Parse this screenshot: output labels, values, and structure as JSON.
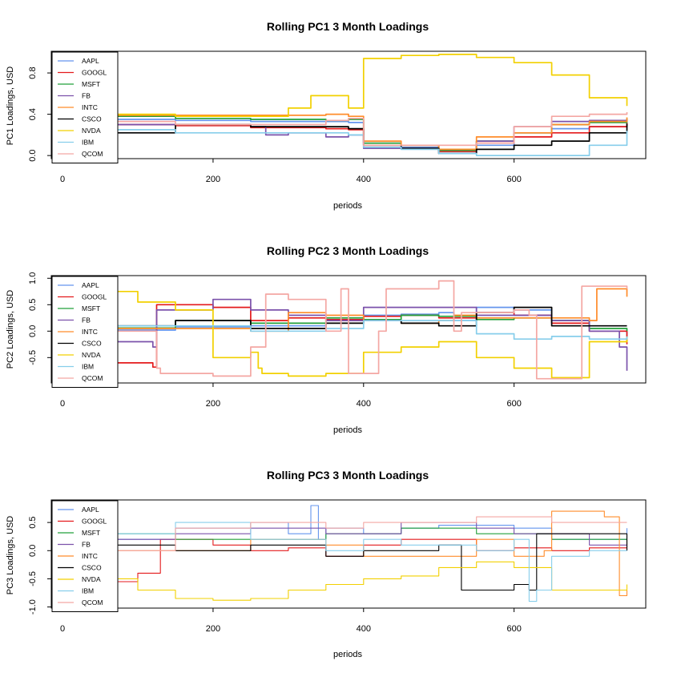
{
  "series_names": [
    "AAPL",
    "GOOGL",
    "MSFT",
    "FB",
    "INTC",
    "CSCO",
    "NVDA",
    "IBM",
    "QCOM"
  ],
  "series_colors": [
    "#6495ED",
    "#E41A1C",
    "#22A03A",
    "#7B52AB",
    "#FF8C2A",
    "#000000",
    "#F2D000",
    "#87CEEB",
    "#F4A7A3"
  ],
  "chart_data": [
    {
      "type": "line",
      "title": "Rolling PC1 3 Month Loadings",
      "xlabel": "periods",
      "ylabel": "PC1 Loadings, USD",
      "xlim": [
        -15,
        775
      ],
      "ylim": [
        -0.03,
        1.01
      ],
      "xticks": [
        0,
        200,
        400,
        600
      ],
      "yticks": [
        0.0,
        0.4,
        0.8
      ],
      "ytick_labels": [
        "0.0",
        "0.4",
        "0.8"
      ],
      "legend": "top-left",
      "series": [
        {
          "name": "AAPL",
          "x": [
            60,
            150,
            250,
            350,
            380,
            400,
            450,
            500,
            550,
            600,
            650,
            700,
            750
          ],
          "y": [
            0.35,
            0.34,
            0.33,
            0.33,
            0.32,
            0.1,
            0.08,
            0.06,
            0.1,
            0.22,
            0.26,
            0.28,
            0.3
          ]
        },
        {
          "name": "GOOGL",
          "x": [
            60,
            70,
            150,
            250,
            350,
            380,
            400,
            450,
            500,
            550,
            600,
            650,
            700,
            750
          ],
          "y": [
            0.5,
            0.3,
            0.29,
            0.27,
            0.26,
            0.25,
            0.12,
            0.1,
            0.04,
            0.12,
            0.18,
            0.22,
            0.28,
            0.32
          ]
        },
        {
          "name": "MSFT",
          "x": [
            60,
            150,
            250,
            350,
            380,
            400,
            450,
            500,
            550,
            600,
            650,
            700,
            750
          ],
          "y": [
            0.38,
            0.36,
            0.35,
            0.34,
            0.35,
            0.12,
            0.1,
            0.05,
            0.14,
            0.22,
            0.3,
            0.32,
            0.36
          ]
        },
        {
          "name": "FB",
          "x": [
            60,
            150,
            250,
            270,
            300,
            350,
            380,
            400,
            450,
            500,
            550,
            600,
            650,
            700,
            750
          ],
          "y": [
            0.3,
            0.3,
            0.28,
            0.2,
            0.22,
            0.18,
            0.2,
            0.07,
            0.07,
            0.02,
            0.14,
            0.28,
            0.33,
            0.34,
            0.33
          ]
        },
        {
          "name": "INTC",
          "x": [
            60,
            150,
            250,
            350,
            380,
            400,
            450,
            500,
            550,
            600,
            650,
            700,
            750
          ],
          "y": [
            0.39,
            0.39,
            0.39,
            0.4,
            0.38,
            0.14,
            0.1,
            0.06,
            0.18,
            0.22,
            0.3,
            0.33,
            0.37
          ]
        },
        {
          "name": "CSCO",
          "x": [
            60,
            150,
            250,
            350,
            380,
            400,
            450,
            500,
            550,
            600,
            650,
            700,
            750
          ],
          "y": [
            0.22,
            0.3,
            0.28,
            0.28,
            0.26,
            0.1,
            0.07,
            0.02,
            0.06,
            0.1,
            0.14,
            0.22,
            0.31
          ]
        },
        {
          "name": "NVDA",
          "x": [
            60,
            150,
            250,
            300,
            330,
            380,
            400,
            450,
            500,
            550,
            600,
            650,
            700,
            750
          ],
          "y": [
            0.4,
            0.38,
            0.38,
            0.46,
            0.58,
            0.46,
            0.94,
            0.97,
            0.98,
            0.95,
            0.9,
            0.78,
            0.56,
            0.48
          ]
        },
        {
          "name": "IBM",
          "x": [
            60,
            150,
            250,
            350,
            380,
            400,
            450,
            500,
            550,
            600,
            650,
            700,
            750
          ],
          "y": [
            0.25,
            0.22,
            0.22,
            0.22,
            0.2,
            0.08,
            0.06,
            0.02,
            0.0,
            0.0,
            0.0,
            0.1,
            0.24
          ]
        },
        {
          "name": "QCOM",
          "x": [
            60,
            150,
            250,
            350,
            380,
            400,
            450,
            500,
            550,
            600,
            650,
            700,
            750
          ],
          "y": [
            0.33,
            0.3,
            0.3,
            0.34,
            0.36,
            0.1,
            0.1,
            0.1,
            0.12,
            0.28,
            0.38,
            0.4,
            0.42
          ]
        }
      ]
    },
    {
      "type": "line",
      "title": "Rolling PC2 3 Month Loadings",
      "xlabel": "periods",
      "ylabel": "PC2 Loadings, USD",
      "xlim": [
        -15,
        775
      ],
      "ylim": [
        -0.98,
        1.05
      ],
      "xticks": [
        0,
        200,
        400,
        600
      ],
      "yticks": [
        -0.5,
        0.0,
        0.5,
        1.0
      ],
      "ytick_labels": [
        "-0.5",
        "0.0",
        "0.5",
        "1.0"
      ],
      "legend": "top-left",
      "series": [
        {
          "name": "AAPL",
          "x": [
            60,
            150,
            250,
            350,
            400,
            450,
            500,
            520,
            550,
            600,
            650,
            700,
            750
          ],
          "y": [
            0.02,
            0.08,
            0.1,
            0.2,
            0.3,
            0.32,
            0.35,
            0.2,
            0.45,
            0.4,
            0.2,
            0.0,
            -0.1
          ]
        },
        {
          "name": "GOOGL",
          "x": [
            60,
            70,
            120,
            125,
            200,
            250,
            300,
            350,
            400,
            450,
            500,
            550,
            600,
            650,
            700,
            750
          ],
          "y": [
            -0.4,
            -0.6,
            -0.68,
            0.5,
            0.45,
            0.2,
            0.25,
            0.22,
            0.28,
            0.3,
            0.25,
            0.35,
            0.3,
            0.15,
            0.0,
            -0.25
          ]
        },
        {
          "name": "MSFT",
          "x": [
            60,
            150,
            250,
            350,
            400,
            450,
            500,
            550,
            600,
            650,
            700,
            750
          ],
          "y": [
            0.06,
            0.2,
            0.15,
            0.25,
            0.22,
            0.3,
            0.28,
            0.22,
            0.25,
            0.2,
            0.05,
            0.0
          ]
        },
        {
          "name": "FB",
          "x": [
            60,
            120,
            125,
            200,
            220,
            250,
            300,
            350,
            400,
            450,
            500,
            550,
            600,
            650,
            700,
            740,
            750
          ],
          "y": [
            -0.2,
            -0.3,
            0.4,
            0.6,
            0.6,
            0.4,
            0.3,
            0.2,
            0.45,
            0.45,
            0.45,
            0.3,
            0.3,
            0.2,
            0.0,
            -0.3,
            -0.75
          ]
        },
        {
          "name": "INTC",
          "x": [
            60,
            150,
            250,
            300,
            350,
            400,
            450,
            500,
            520,
            550,
            600,
            650,
            700,
            710,
            750
          ],
          "y": [
            0.05,
            0.05,
            0.0,
            0.35,
            0.3,
            0.2,
            0.15,
            0.2,
            0.3,
            0.25,
            0.25,
            0.25,
            0.2,
            0.8,
            0.65
          ]
        },
        {
          "name": "CSCO",
          "x": [
            60,
            150,
            250,
            350,
            400,
            450,
            500,
            550,
            600,
            650,
            700,
            750
          ],
          "y": [
            0.1,
            0.2,
            0.05,
            0.15,
            0.2,
            0.15,
            0.1,
            0.35,
            0.45,
            0.1,
            0.1,
            0.1
          ]
        },
        {
          "name": "NVDA",
          "x": [
            60,
            100,
            150,
            200,
            250,
            260,
            265,
            300,
            350,
            400,
            450,
            500,
            550,
            600,
            650,
            700,
            750
          ],
          "y": [
            0.75,
            0.55,
            0.4,
            -0.5,
            -0.4,
            -0.7,
            -0.8,
            -0.85,
            -0.8,
            -0.4,
            -0.3,
            -0.2,
            -0.5,
            -0.7,
            -0.88,
            -0.2,
            -0.1
          ]
        },
        {
          "name": "IBM",
          "x": [
            60,
            150,
            250,
            350,
            400,
            450,
            500,
            550,
            600,
            650,
            700,
            750
          ],
          "y": [
            0.1,
            0.1,
            0.0,
            0.05,
            0.2,
            0.2,
            0.2,
            -0.05,
            -0.15,
            -0.1,
            -0.15,
            -0.1
          ]
        },
        {
          "name": "QCOM",
          "x": [
            60,
            125,
            130,
            200,
            250,
            270,
            300,
            350,
            370,
            380,
            420,
            430,
            500,
            520,
            530,
            600,
            620,
            630,
            680,
            690,
            750
          ],
          "y": [
            0.0,
            -0.7,
            -0.8,
            -0.85,
            -0.3,
            0.7,
            0.6,
            0.0,
            0.8,
            -0.8,
            0.0,
            0.8,
            0.95,
            0.0,
            0.35,
            0.4,
            0.3,
            -0.9,
            -0.9,
            0.85,
            0.8
          ]
        }
      ]
    },
    {
      "type": "line",
      "title": "Rolling PC3 3 Month Loadings",
      "xlabel": "periods",
      "ylabel": "PC3 Loadings, USD",
      "xlim": [
        -15,
        775
      ],
      "ylim": [
        -1.02,
        0.9
      ],
      "xticks": [
        0,
        200,
        400,
        600
      ],
      "yticks": [
        -1.0,
        -0.5,
        0.0,
        0.5
      ],
      "ytick_labels": [
        "-1.0",
        "-0.5",
        "0.0",
        "0.5"
      ],
      "legend": "top-left",
      "series": [
        {
          "name": "AAPL",
          "x": [
            60,
            150,
            250,
            300,
            330,
            340,
            350,
            400,
            450,
            500,
            550,
            600,
            650,
            700,
            750
          ],
          "y": [
            0.2,
            0.4,
            0.5,
            0.3,
            0.8,
            0.2,
            0.4,
            0.3,
            0.4,
            0.45,
            0.45,
            0.4,
            0.2,
            0.2,
            0.4
          ]
        },
        {
          "name": "GOOGL",
          "x": [
            60,
            100,
            130,
            200,
            250,
            300,
            350,
            400,
            450,
            500,
            550,
            600,
            650,
            700,
            750
          ],
          "y": [
            -0.55,
            -0.4,
            0.2,
            0.1,
            0.0,
            0.05,
            -0.1,
            0.1,
            0.2,
            0.2,
            0.0,
            0.05,
            0.0,
            0.05,
            0.2
          ]
        },
        {
          "name": "MSFT",
          "x": [
            60,
            150,
            250,
            350,
            400,
            450,
            500,
            550,
            600,
            650,
            700,
            750
          ],
          "y": [
            0.3,
            0.2,
            0.2,
            0.3,
            0.3,
            0.4,
            0.4,
            0.3,
            0.3,
            0.2,
            0.2,
            0.1
          ]
        },
        {
          "name": "FB",
          "x": [
            60,
            150,
            250,
            350,
            400,
            450,
            500,
            550,
            600,
            650,
            700,
            750
          ],
          "y": [
            0.2,
            0.3,
            0.4,
            0.3,
            0.3,
            0.5,
            0.5,
            0.4,
            0.3,
            0.3,
            0.1,
            0.0
          ]
        },
        {
          "name": "INTC",
          "x": [
            60,
            150,
            250,
            350,
            400,
            450,
            500,
            550,
            600,
            640,
            650,
            700,
            720,
            740,
            750
          ],
          "y": [
            0.0,
            0.0,
            0.2,
            0.1,
            -0.1,
            -0.1,
            -0.1,
            0.2,
            -0.1,
            0.0,
            0.7,
            0.7,
            0.6,
            -0.8,
            -0.7
          ]
        },
        {
          "name": "CSCO",
          "x": [
            60,
            150,
            250,
            350,
            400,
            450,
            500,
            520,
            530,
            600,
            620,
            630,
            700,
            750
          ],
          "y": [
            0.1,
            0.0,
            0.1,
            -0.1,
            0.0,
            0.0,
            0.1,
            0.1,
            -0.7,
            -0.6,
            -0.7,
            0.3,
            0.3,
            0.0
          ]
        },
        {
          "name": "NVDA",
          "x": [
            60,
            100,
            150,
            200,
            250,
            300,
            350,
            400,
            450,
            500,
            550,
            600,
            650,
            700,
            750
          ],
          "y": [
            -0.5,
            -0.7,
            -0.85,
            -0.88,
            -0.85,
            -0.7,
            -0.6,
            -0.5,
            -0.45,
            -0.3,
            -0.2,
            -0.3,
            -0.7,
            -0.7,
            -0.6
          ]
        },
        {
          "name": "IBM",
          "x": [
            60,
            150,
            250,
            350,
            400,
            450,
            500,
            550,
            600,
            620,
            630,
            650,
            700,
            750
          ],
          "y": [
            0.3,
            0.5,
            0.2,
            0.0,
            0.2,
            0.1,
            0.1,
            0.0,
            0.2,
            -0.9,
            -0.7,
            -0.1,
            0.0,
            0.0
          ]
        },
        {
          "name": "QCOM",
          "x": [
            60,
            150,
            250,
            350,
            400,
            450,
            500,
            550,
            600,
            650,
            700,
            750
          ],
          "y": [
            0.0,
            0.4,
            0.5,
            0.4,
            0.5,
            0.5,
            0.5,
            0.6,
            0.6,
            0.5,
            0.5,
            0.5
          ]
        }
      ]
    }
  ]
}
